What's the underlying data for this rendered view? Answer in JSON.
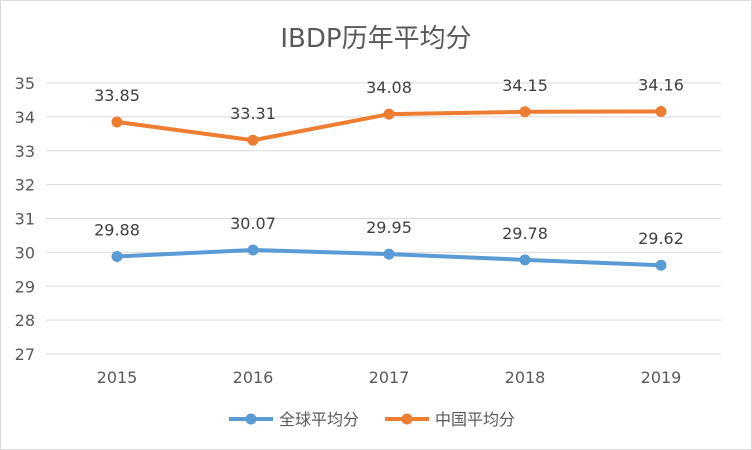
{
  "chart_data": {
    "type": "line",
    "title": "IBDP历年平均分",
    "categories": [
      "2015",
      "2016",
      "2017",
      "2018",
      "2019"
    ],
    "ylim": [
      27,
      35
    ],
    "yticks": [
      27,
      28,
      29,
      30,
      31,
      32,
      33,
      34,
      35
    ],
    "grid": true,
    "legend_position": "bottom",
    "series": [
      {
        "name": "全球平均分",
        "color": "#5b9bd5",
        "values": [
          29.88,
          30.07,
          29.95,
          29.78,
          29.62
        ],
        "labels": [
          "29.88",
          "30.07",
          "29.95",
          "29.78",
          "29.62"
        ]
      },
      {
        "name": "中国平均分",
        "color": "#ed7d31",
        "values": [
          33.85,
          33.31,
          34.08,
          34.15,
          34.16
        ],
        "labels": [
          "33.85",
          "33.31",
          "34.08",
          "34.15",
          "34.16"
        ]
      }
    ]
  }
}
